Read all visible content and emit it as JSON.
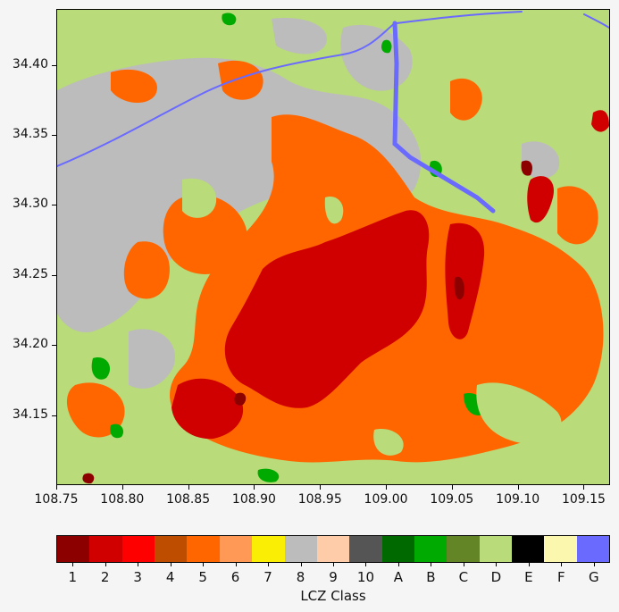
{
  "map": {
    "lon_range": [
      108.75,
      109.17
    ],
    "lat_range": [
      34.1,
      34.44
    ],
    "x_ticks": [
      "108.75",
      "108.80",
      "108.85",
      "108.90",
      "108.95",
      "109.00",
      "109.05",
      "109.10",
      "109.15"
    ],
    "y_ticks": [
      "34.40",
      "34.35",
      "34.30",
      "34.25",
      "34.20",
      "34.15"
    ],
    "background_class": "D"
  },
  "colorbar": {
    "title": "LCZ Class",
    "classes": [
      {
        "label": "1",
        "color": "#8c0000"
      },
      {
        "label": "2",
        "color": "#d10000"
      },
      {
        "label": "3",
        "color": "#ff0000"
      },
      {
        "label": "4",
        "color": "#bf4d00"
      },
      {
        "label": "5",
        "color": "#ff6600"
      },
      {
        "label": "6",
        "color": "#ff9955"
      },
      {
        "label": "7",
        "color": "#faee05"
      },
      {
        "label": "8",
        "color": "#bcbcbc"
      },
      {
        "label": "9",
        "color": "#ffccaa"
      },
      {
        "label": "10",
        "color": "#555555"
      },
      {
        "label": "A",
        "color": "#006a00"
      },
      {
        "label": "B",
        "color": "#00aa00"
      },
      {
        "label": "C",
        "color": "#648526"
      },
      {
        "label": "D",
        "color": "#b9db79"
      },
      {
        "label": "E",
        "color": "#000000"
      },
      {
        "label": "F",
        "color": "#fbf7ae"
      },
      {
        "label": "G",
        "color": "#6a6aff"
      }
    ]
  }
}
